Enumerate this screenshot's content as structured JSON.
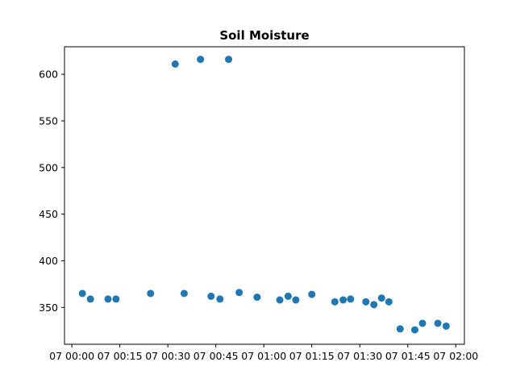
{
  "chart_data": {
    "type": "scatter",
    "title": "Soil Moisture",
    "xlabel": "",
    "ylabel": "",
    "x_unit": "minutes",
    "xlim": [
      -2.3,
      122.7
    ],
    "ylim": [
      310.5,
      629.5
    ],
    "grid": false,
    "marker_color": "#1f77b4",
    "x_ticks": [
      {
        "value": 0,
        "label": "07 00:00"
      },
      {
        "value": 15,
        "label": "07 00:15"
      },
      {
        "value": 30,
        "label": "07 00:30"
      },
      {
        "value": 45,
        "label": "07 00:45"
      },
      {
        "value": 60,
        "label": "07 01:00"
      },
      {
        "value": 75,
        "label": "07 01:15"
      },
      {
        "value": 90,
        "label": "07 01:30"
      },
      {
        "value": 105,
        "label": "07 01:45"
      },
      {
        "value": 120,
        "label": "07 02:00"
      }
    ],
    "y_ticks": [
      {
        "value": 350,
        "label": "350"
      },
      {
        "value": 400,
        "label": "400"
      },
      {
        "value": 450,
        "label": "450"
      },
      {
        "value": 500,
        "label": "500"
      },
      {
        "value": 550,
        "label": "550"
      },
      {
        "value": 600,
        "label": "600"
      }
    ],
    "points": [
      {
        "x": 3.3,
        "y": 365
      },
      {
        "x": 5.8,
        "y": 359
      },
      {
        "x": 11.3,
        "y": 359
      },
      {
        "x": 13.8,
        "y": 359
      },
      {
        "x": 24.6,
        "y": 365
      },
      {
        "x": 32.3,
        "y": 611
      },
      {
        "x": 35.1,
        "y": 365
      },
      {
        "x": 40.2,
        "y": 616
      },
      {
        "x": 43.5,
        "y": 362
      },
      {
        "x": 46.3,
        "y": 359
      },
      {
        "x": 49.0,
        "y": 616
      },
      {
        "x": 52.3,
        "y": 366
      },
      {
        "x": 57.9,
        "y": 361
      },
      {
        "x": 65.0,
        "y": 358
      },
      {
        "x": 67.6,
        "y": 362
      },
      {
        "x": 70.0,
        "y": 358
      },
      {
        "x": 75.0,
        "y": 364
      },
      {
        "x": 82.2,
        "y": 356
      },
      {
        "x": 84.8,
        "y": 358
      },
      {
        "x": 87.1,
        "y": 359
      },
      {
        "x": 91.9,
        "y": 356
      },
      {
        "x": 94.4,
        "y": 353
      },
      {
        "x": 96.8,
        "y": 360
      },
      {
        "x": 99.1,
        "y": 356
      },
      {
        "x": 102.6,
        "y": 327
      },
      {
        "x": 107.2,
        "y": 326
      },
      {
        "x": 109.6,
        "y": 333
      },
      {
        "x": 114.4,
        "y": 333
      },
      {
        "x": 117.0,
        "y": 330
      }
    ]
  }
}
